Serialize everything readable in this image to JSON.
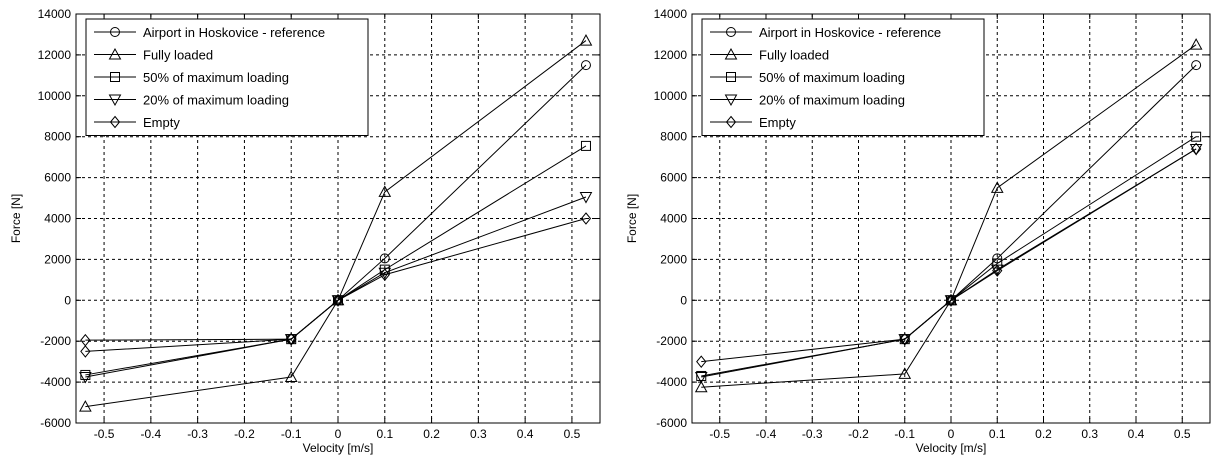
{
  "chart_data": [
    {
      "type": "line",
      "xlabel": "Velocity [m/s]",
      "ylabel": "Force [N]",
      "xlim": [
        -0.56,
        0.56
      ],
      "ylim": [
        -6000,
        14000
      ],
      "xticks": [
        -0.5,
        -0.4,
        -0.3,
        -0.2,
        -0.1,
        0,
        0.1,
        0.2,
        0.3,
        0.4,
        0.5
      ],
      "xtick_labels": [
        "-0.5",
        "-0.4",
        "-0.3",
        "-0.2",
        "-0.1",
        "0",
        "0.1",
        "0.2",
        "0.3",
        "0.4",
        "0.5"
      ],
      "yticks": [
        -6000,
        -4000,
        -2000,
        0,
        2000,
        4000,
        6000,
        8000,
        10000,
        12000,
        14000
      ],
      "ytick_labels": [
        "-6000",
        "-4000",
        "-2000",
        "0",
        "2000",
        "4000",
        "6000",
        "8000",
        "10000",
        "12000",
        "14000"
      ],
      "grid": true,
      "legend_position": "top-left",
      "series": [
        {
          "name": "Airport in Hoskovice - reference",
          "marker": "circle",
          "x": [
            -0.1,
            0,
            0.1,
            0.53
          ],
          "y": [
            -1900,
            0,
            2050,
            11500
          ]
        },
        {
          "name": "Fully loaded",
          "marker": "triangle-up",
          "x": [
            -0.54,
            -0.1,
            0,
            0.1,
            0.53
          ],
          "y": [
            -5200,
            -3750,
            0,
            5300,
            12700
          ]
        },
        {
          "name": "50% of maximum loading",
          "marker": "square",
          "x": [
            -0.54,
            -0.1,
            0,
            0.1,
            0.53
          ],
          "y": [
            -3650,
            -1900,
            0,
            1500,
            7550
          ]
        },
        {
          "name": "20% of maximum loading",
          "marker": "triangle-down",
          "x": [
            -0.54,
            -0.1,
            0,
            0.1,
            0.53
          ],
          "y": [
            -3750,
            -1900,
            0,
            1350,
            5050
          ]
        },
        {
          "name": "Empty",
          "marker": "diamond",
          "x": [
            -0.54,
            -0.1,
            0,
            0.1,
            0.53
          ],
          "y": [
            -2500,
            -1900,
            0,
            1250,
            4000
          ]
        },
        {
          "name": "",
          "marker": "diamond",
          "x": [
            -0.54,
            -0.1
          ],
          "y": [
            -1950,
            -1900
          ]
        }
      ]
    },
    {
      "type": "line",
      "xlabel": "Velocity [m/s]",
      "ylabel": "Force [N]",
      "xlim": [
        -0.56,
        0.56
      ],
      "ylim": [
        -6000,
        14000
      ],
      "xticks": [
        -0.5,
        -0.4,
        -0.3,
        -0.2,
        -0.1,
        0,
        0.1,
        0.2,
        0.3,
        0.4,
        0.5
      ],
      "xtick_labels": [
        "-0.5",
        "-0.4",
        "-0.3",
        "-0.2",
        "-0.1",
        "0",
        "0.1",
        "0.2",
        "0.3",
        "0.4",
        "0.5"
      ],
      "yticks": [
        -6000,
        -4000,
        -2000,
        0,
        2000,
        4000,
        6000,
        8000,
        10000,
        12000,
        14000
      ],
      "ytick_labels": [
        "-6000",
        "-4000",
        "-2000",
        "0",
        "2000",
        "4000",
        "6000",
        "8000",
        "10000",
        "12000",
        "14000"
      ],
      "grid": true,
      "legend_position": "top-left",
      "series": [
        {
          "name": "Airport in Hoskovice - reference",
          "marker": "circle",
          "x": [
            -0.1,
            0,
            0.1,
            0.53
          ],
          "y": [
            -1900,
            0,
            2050,
            11500
          ]
        },
        {
          "name": "Fully loaded",
          "marker": "triangle-up",
          "x": [
            -0.54,
            -0.1,
            0,
            0.1,
            0.53
          ],
          "y": [
            -4250,
            -3600,
            0,
            5500,
            12500
          ]
        },
        {
          "name": "50% of maximum loading",
          "marker": "square",
          "x": [
            -0.54,
            -0.1,
            0,
            0.1,
            0.53
          ],
          "y": [
            -3700,
            -1900,
            0,
            1800,
            8000
          ]
        },
        {
          "name": "20% of maximum loading",
          "marker": "triangle-down",
          "x": [
            -0.54,
            -0.1,
            0,
            0.1,
            0.53
          ],
          "y": [
            -3750,
            -1900,
            0,
            1500,
            7400
          ]
        },
        {
          "name": "Empty",
          "marker": "diamond",
          "x": [
            -0.54,
            -0.1,
            0,
            0.1,
            0.53
          ],
          "y": [
            -3000,
            -1900,
            0,
            1450,
            7400
          ]
        }
      ]
    }
  ]
}
